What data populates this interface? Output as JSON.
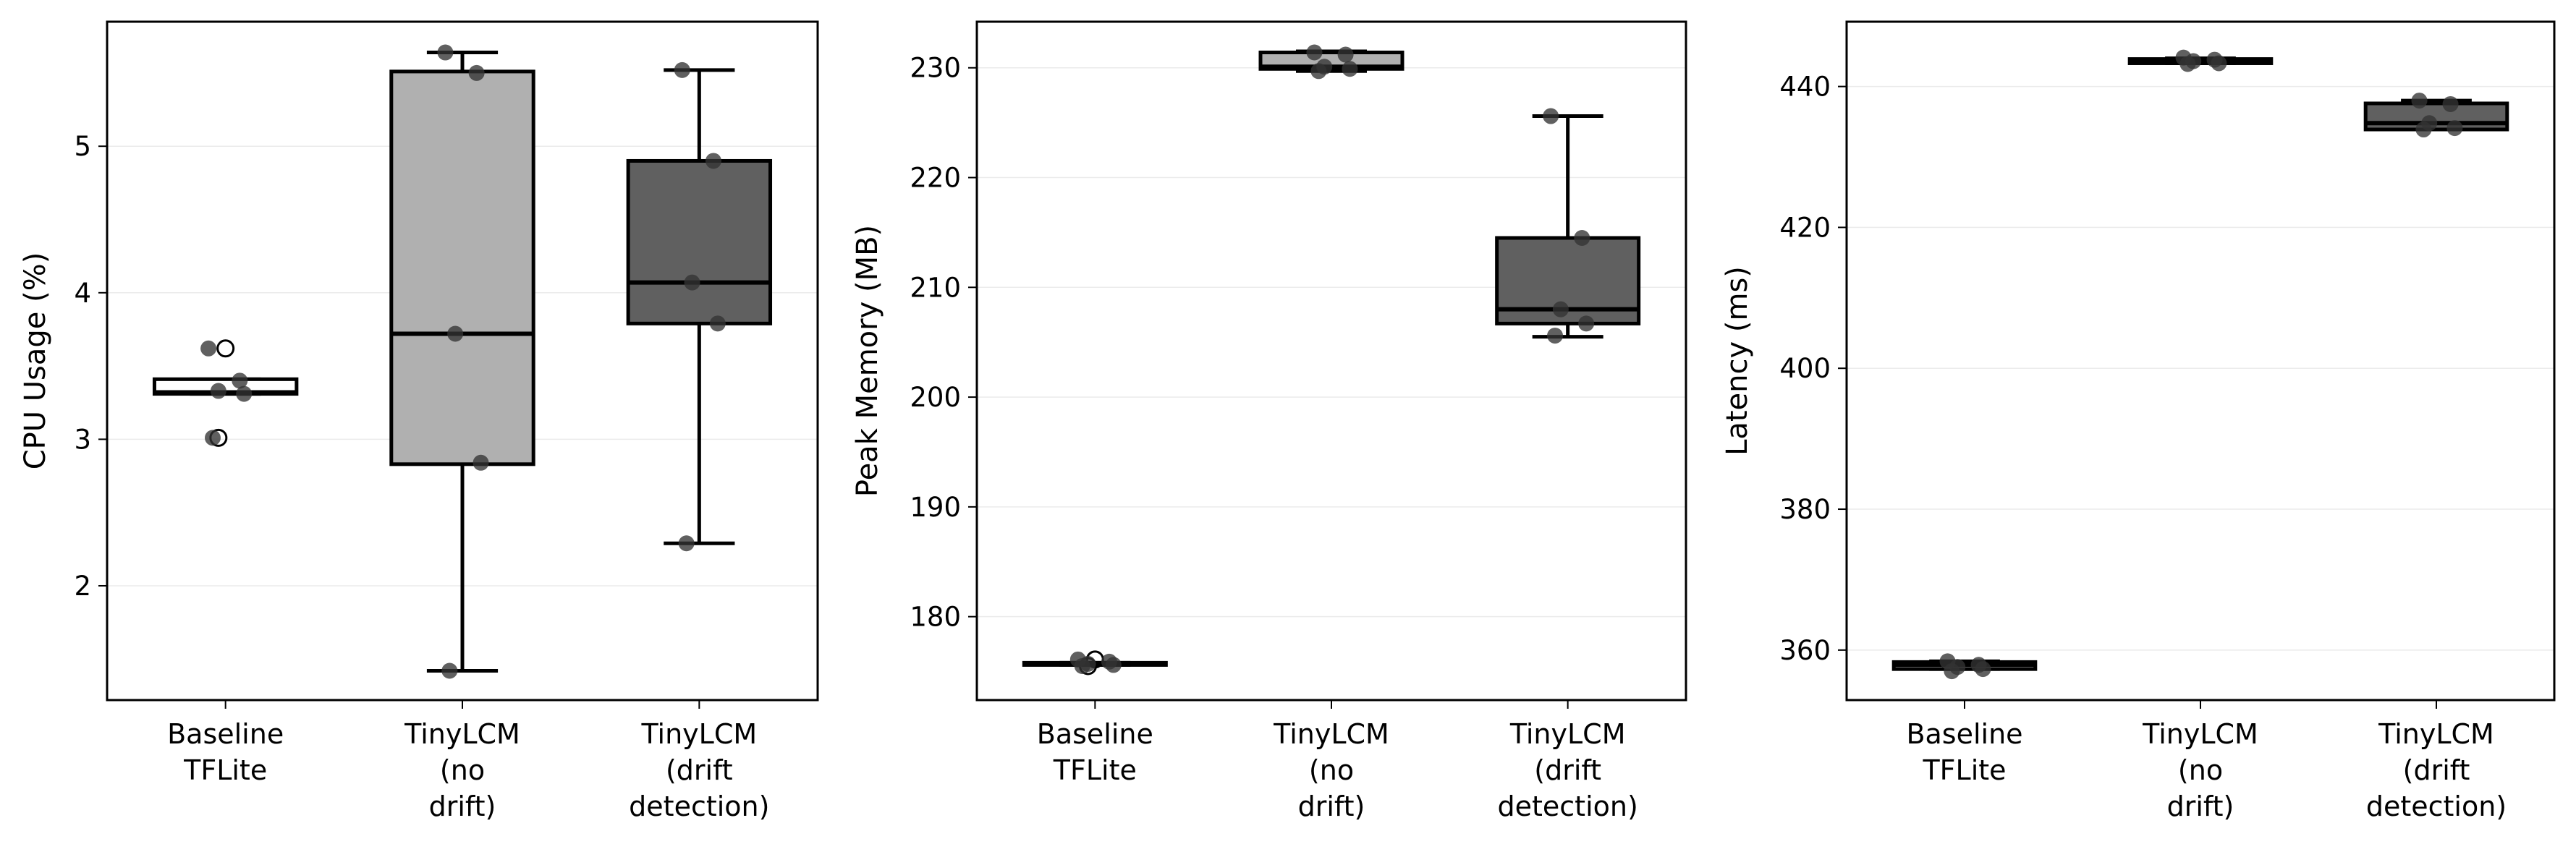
{
  "chart_data": [
    {
      "type": "box",
      "ylabel": "CPU Usage (%)",
      "xlabel": "",
      "ylim": [
        1.22,
        5.85
      ],
      "yticks": [
        2,
        3,
        4,
        5
      ],
      "grid": "horizontal",
      "categories": [
        "Baseline\nTFLite",
        "TinyLCM\n(no\ndrift)",
        "TinyLCM\n(drift\ndetection)"
      ],
      "colors": [
        "#ffffff",
        "#b0b0b0",
        "#606060"
      ],
      "boxes": [
        {
          "q1": 3.31,
          "median": 3.32,
          "q3": 3.41,
          "whisker_low": 3.31,
          "whisker_high": 3.41,
          "outliers": [
            3.62,
            3.01
          ]
        },
        {
          "q1": 2.83,
          "median": 3.72,
          "q3": 5.51,
          "whisker_low": 1.42,
          "whisker_high": 5.64,
          "outliers": []
        },
        {
          "q1": 3.79,
          "median": 4.07,
          "q3": 4.9,
          "whisker_low": 2.29,
          "whisker_high": 5.52,
          "outliers": []
        }
      ],
      "points": [
        [
          3.62,
          3.4,
          3.33,
          3.31,
          3.01
        ],
        [
          5.64,
          5.5,
          3.72,
          2.84,
          1.42
        ],
        [
          5.52,
          4.9,
          4.07,
          3.79,
          2.29
        ]
      ]
    },
    {
      "type": "box",
      "ylabel": "Peak Memory (MB)",
      "xlabel": "",
      "ylim": [
        172.4,
        234.2
      ],
      "yticks": [
        180,
        190,
        200,
        210,
        220,
        230
      ],
      "grid": "horizontal",
      "categories": [
        "Baseline\nTFLite",
        "TinyLCM\n(no\ndrift)",
        "TinyLCM\n(drift\ndetection)"
      ],
      "colors": [
        "#ffffff",
        "#b0b0b0",
        "#606060"
      ],
      "boxes": [
        {
          "q1": 175.6,
          "median": 175.7,
          "q3": 175.8,
          "whisker_low": 175.6,
          "whisker_high": 175.8,
          "outliers": [
            176.1,
            175.5
          ]
        },
        {
          "q1": 229.9,
          "median": 230.1,
          "q3": 231.4,
          "whisker_low": 229.7,
          "whisker_high": 231.5,
          "outliers": []
        },
        {
          "q1": 206.7,
          "median": 208.0,
          "q3": 214.5,
          "whisker_low": 205.5,
          "whisker_high": 225.6,
          "outliers": []
        }
      ],
      "points": [
        [
          176.1,
          175.9,
          175.7,
          175.6,
          175.5
        ],
        [
          231.4,
          231.2,
          230.1,
          229.9,
          229.7
        ],
        [
          225.6,
          214.5,
          208.0,
          206.7,
          205.6
        ]
      ]
    },
    {
      "type": "box",
      "ylabel": "Latency (ms)",
      "xlabel": "",
      "ylim": [
        352.9,
        449.2
      ],
      "yticks": [
        360,
        380,
        400,
        420,
        440
      ],
      "grid": "horizontal",
      "categories": [
        "Baseline\nTFLite",
        "TinyLCM\n(no\ndrift)",
        "TinyLCM\n(drift\ndetection)"
      ],
      "colors": [
        "#ffffff",
        "#b0b0b0",
        "#606060"
      ],
      "boxes": [
        {
          "q1": 357.3,
          "median": 357.9,
          "q3": 358.3,
          "whisker_low": 357.3,
          "whisker_high": 358.4,
          "outliers": []
        },
        {
          "q1": 443.3,
          "median": 443.6,
          "q3": 443.9,
          "whisker_low": 443.3,
          "whisker_high": 444.0,
          "outliers": []
        },
        {
          "q1": 433.9,
          "median": 434.8,
          "q3": 437.6,
          "whisker_low": 433.9,
          "whisker_high": 438.0,
          "outliers": []
        }
      ],
      "points": [
        [
          358.4,
          357.9,
          357.6,
          357.3,
          357.0
        ],
        [
          444.1,
          443.8,
          443.6,
          443.3,
          443.2
        ],
        [
          438.0,
          437.5,
          434.8,
          434.1,
          433.9
        ]
      ]
    }
  ]
}
